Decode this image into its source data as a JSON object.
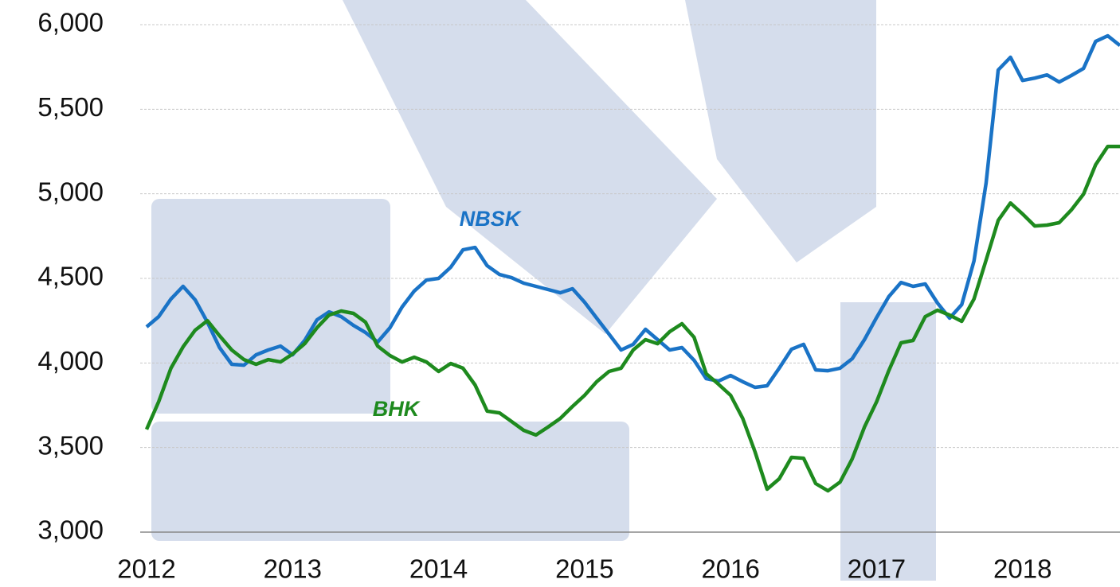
{
  "chart_data": {
    "type": "line",
    "x": [
      2012,
      2012.083,
      2012.167,
      2012.25,
      2012.333,
      2012.417,
      2012.5,
      2012.583,
      2012.667,
      2012.75,
      2012.833,
      2012.917,
      2013,
      2013.083,
      2013.167,
      2013.25,
      2013.333,
      2013.417,
      2013.5,
      2013.583,
      2013.667,
      2013.75,
      2013.833,
      2013.917,
      2014,
      2014.083,
      2014.167,
      2014.25,
      2014.333,
      2014.417,
      2014.5,
      2014.583,
      2014.667,
      2014.75,
      2014.833,
      2014.917,
      2015,
      2015.083,
      2015.167,
      2015.25,
      2015.333,
      2015.417,
      2015.5,
      2015.583,
      2015.667,
      2015.75,
      2015.833,
      2015.917,
      2016,
      2016.083,
      2016.167,
      2016.25,
      2016.333,
      2016.417,
      2016.5,
      2016.583,
      2016.667,
      2016.75,
      2016.833,
      2016.917,
      2017,
      2017.083,
      2017.167,
      2017.25,
      2017.333,
      2017.417,
      2017.5,
      2017.583,
      2017.667,
      2017.75,
      2017.833,
      2017.917,
      2018,
      2018.083,
      2018.167,
      2018.25,
      2018.333,
      2018.417,
      2018.5,
      2018.583,
      2018.667
    ],
    "series": [
      {
        "name": "NBSK",
        "color": "#1a73c6",
        "values": [
          4213,
          4274,
          4378,
          4453,
          4373,
          4241,
          4091,
          3992,
          3987,
          4048,
          4077,
          4100,
          4048,
          4133,
          4255,
          4302,
          4274,
          4222,
          4180,
          4124,
          4208,
          4331,
          4425,
          4490,
          4500,
          4566,
          4669,
          4683,
          4575,
          4523,
          4504,
          4472,
          4453,
          4434,
          4415,
          4439,
          4359,
          4265,
          4171,
          4077,
          4110,
          4199,
          4138,
          4077,
          4091,
          4016,
          3907,
          3893,
          3926,
          3889,
          3856,
          3865,
          3969,
          4081,
          4110,
          3959,
          3954,
          3969,
          4025,
          4138,
          4269,
          4392,
          4476,
          4453,
          4467,
          4354,
          4265,
          4345,
          4603,
          5064,
          5732,
          5807,
          5670,
          5684,
          5703,
          5661,
          5699,
          5741,
          5901,
          5934,
          5877
        ]
      },
      {
        "name": "BHK",
        "color": "#1e8a1e",
        "values": [
          3607,
          3771,
          3969,
          4095,
          4194,
          4250,
          4161,
          4077,
          4020,
          3992,
          4020,
          4006,
          4053,
          4114,
          4208,
          4283,
          4307,
          4293,
          4241,
          4100,
          4044,
          4006,
          4034,
          4006,
          3950,
          3997,
          3969,
          3870,
          3715,
          3705,
          3654,
          3602,
          3574,
          3621,
          3672,
          3743,
          3809,
          3889,
          3950,
          3969,
          4077,
          4138,
          4114,
          4185,
          4232,
          4152,
          3936,
          3874,
          3809,
          3672,
          3475,
          3254,
          3315,
          3442,
          3437,
          3287,
          3244,
          3296,
          3433,
          3621,
          3771,
          3954,
          4119,
          4133,
          4274,
          4312,
          4283,
          4246,
          4378,
          4608,
          4843,
          4946,
          4881,
          4810,
          4815,
          4829,
          4904,
          4998,
          5172,
          5280,
          5280
        ]
      }
    ],
    "annotations": [
      {
        "text": "NBSK",
        "color": "#1a73c6"
      },
      {
        "text": "BHK",
        "color": "#1e8a1e"
      }
    ],
    "xlim": [
      2012,
      2018.667
    ],
    "xticks": [
      2012,
      2013,
      2014,
      2015,
      2016,
      2017,
      2018
    ],
    "ylim": [
      3000,
      6000
    ],
    "yticks": [
      {
        "value": 3000,
        "label": "3,000"
      },
      {
        "value": 3500,
        "label": "3,500"
      },
      {
        "value": 4000,
        "label": "4,000"
      },
      {
        "value": 4500,
        "label": "4,500"
      },
      {
        "value": 5000,
        "label": "5,000"
      },
      {
        "value": 5500,
        "label": "5,500"
      },
      {
        "value": 6000,
        "label": "6,000"
      }
    ],
    "grid": true
  }
}
